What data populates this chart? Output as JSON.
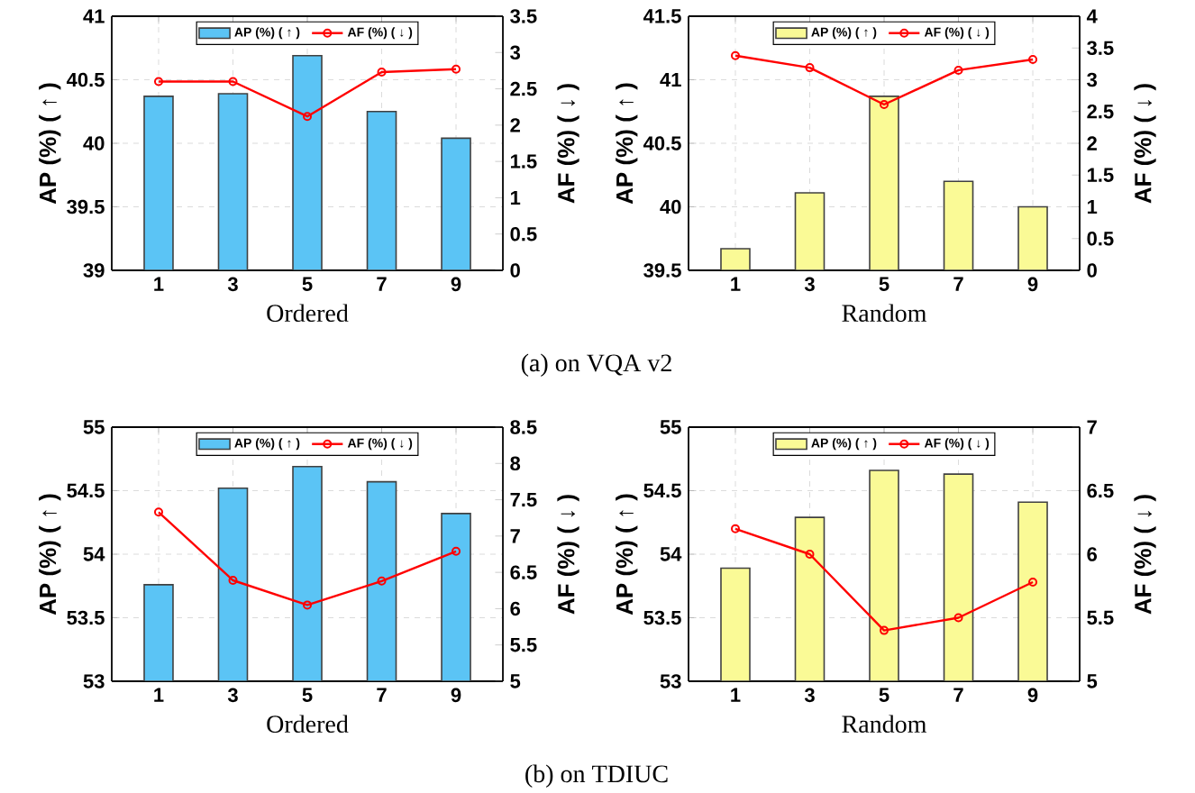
{
  "chart_data": [
    {
      "type": "bar",
      "xlabel": "Ordered",
      "ylabel": "AP (%) ( ↑ )",
      "y2label": "AF (%) ( ↓ )",
      "categories": [
        "1",
        "3",
        "5",
        "7",
        "9"
      ],
      "series": [
        {
          "name": "AP (%) ( ↑ )",
          "color": "#5bc4f5",
          "values": [
            40.37,
            40.39,
            40.69,
            40.25,
            40.04
          ]
        },
        {
          "name": "AF (%) ( ↓ )",
          "type": "line",
          "axis": "y2",
          "color": "#ff0000",
          "values": [
            2.6,
            2.6,
            2.12,
            2.73,
            2.77
          ]
        }
      ],
      "ylim": [
        39,
        41
      ],
      "yticks": [
        39,
        39.5,
        40,
        40.5,
        41
      ],
      "y2lim": [
        0,
        3.5
      ],
      "y2ticks": [
        0,
        0.5,
        1,
        1.5,
        2,
        2.5,
        3,
        3.5
      ],
      "grid": true,
      "legend": "top",
      "marker": "circle",
      "annotations": [
        "(a) on VQA v2"
      ]
    },
    {
      "type": "bar",
      "xlabel": "Random",
      "ylabel": "AP (%) ( ↑ )",
      "y2label": "AF (%) ( ↓ )",
      "categories": [
        "1",
        "3",
        "5",
        "7",
        "9"
      ],
      "series": [
        {
          "name": "AP (%) ( ↑ )",
          "color": "#fafa96",
          "values": [
            39.67,
            40.11,
            40.87,
            40.2,
            40.0
          ]
        },
        {
          "name": "AF (%) ( ↓ )",
          "type": "line",
          "axis": "y2",
          "color": "#ff0000",
          "values": [
            3.38,
            3.19,
            2.61,
            3.15,
            3.32
          ]
        }
      ],
      "ylim": [
        39.5,
        41.5
      ],
      "yticks": [
        39.5,
        40,
        40.5,
        41,
        41.5
      ],
      "y2lim": [
        0,
        4
      ],
      "y2ticks": [
        0,
        0.5,
        1,
        1.5,
        2,
        2.5,
        3,
        3.5,
        4
      ],
      "grid": true,
      "legend": "top",
      "marker": "circle"
    },
    {
      "type": "bar",
      "xlabel": "Ordered",
      "ylabel": "AP (%) ( ↑ )",
      "y2label": "AF (%) ( ↓ )",
      "categories": [
        "1",
        "3",
        "5",
        "7",
        "9"
      ],
      "series": [
        {
          "name": "AP (%) ( ↑ )",
          "color": "#5bc4f5",
          "values": [
            53.76,
            54.52,
            54.69,
            54.57,
            54.32
          ]
        },
        {
          "name": "AF (%) ( ↓ )",
          "type": "line",
          "axis": "y2",
          "color": "#ff0000",
          "values": [
            7.33,
            6.39,
            6.05,
            6.38,
            6.79
          ]
        }
      ],
      "ylim": [
        53,
        55
      ],
      "yticks": [
        53,
        53.5,
        54,
        54.5,
        55
      ],
      "y2lim": [
        5,
        8.5
      ],
      "y2ticks": [
        5,
        5.5,
        6,
        6.5,
        7,
        7.5,
        8,
        8.5
      ],
      "grid": true,
      "legend": "top",
      "marker": "circle",
      "annotations": [
        "(b) on TDIUC"
      ]
    },
    {
      "type": "bar",
      "xlabel": "Random",
      "ylabel": "AP (%) ( ↑ )",
      "y2label": "AF (%) ( ↓ )",
      "categories": [
        "1",
        "3",
        "5",
        "7",
        "9"
      ],
      "series": [
        {
          "name": "AP (%) ( ↑ )",
          "color": "#fafa96",
          "values": [
            53.89,
            54.29,
            54.66,
            54.63,
            54.41
          ]
        },
        {
          "name": "AF (%) ( ↓ )",
          "type": "line",
          "axis": "y2",
          "color": "#ff0000",
          "values": [
            6.2,
            6.0,
            5.4,
            5.5,
            5.78
          ]
        }
      ],
      "ylim": [
        53,
        55
      ],
      "yticks": [
        53,
        53.5,
        54,
        54.5,
        55
      ],
      "y2lim": [
        5,
        7
      ],
      "y2ticks": [
        5,
        5.5,
        6,
        6.5,
        7
      ],
      "grid": true,
      "legend": "top",
      "marker": "circle"
    }
  ]
}
